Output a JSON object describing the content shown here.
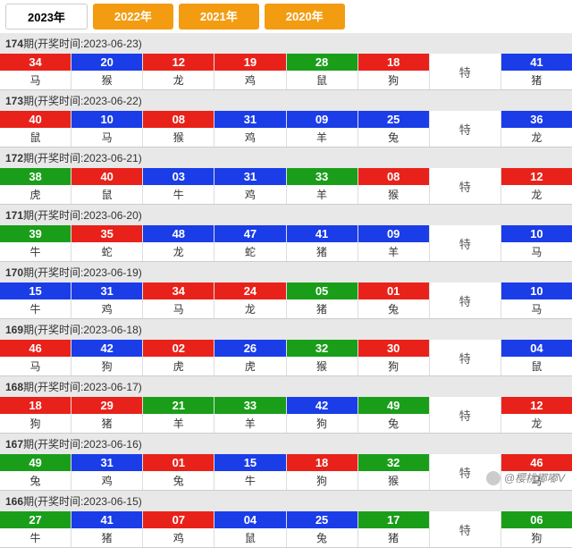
{
  "tabs": [
    {
      "label": "2023年",
      "active": true
    },
    {
      "label": "2022年",
      "active": false
    },
    {
      "label": "2021年",
      "active": false
    },
    {
      "label": "2020年",
      "active": false
    }
  ],
  "header_prefix": "期(开奖时间:",
  "header_suffix": ")",
  "special_label": "特",
  "colors": {
    "red": "#e8221a",
    "blue": "#1a3de8",
    "green": "#1a9e1a"
  },
  "periods": [
    {
      "issue": "174",
      "date": "2023-06-23",
      "balls": [
        {
          "n": "34",
          "z": "马",
          "c": "red"
        },
        {
          "n": "20",
          "z": "猴",
          "c": "blue"
        },
        {
          "n": "12",
          "z": "龙",
          "c": "red"
        },
        {
          "n": "19",
          "z": "鸡",
          "c": "red"
        },
        {
          "n": "28",
          "z": "鼠",
          "c": "green"
        },
        {
          "n": "18",
          "z": "狗",
          "c": "red"
        }
      ],
      "special": {
        "n": "41",
        "z": "猪",
        "c": "blue"
      }
    },
    {
      "issue": "173",
      "date": "2023-06-22",
      "balls": [
        {
          "n": "40",
          "z": "鼠",
          "c": "red"
        },
        {
          "n": "10",
          "z": "马",
          "c": "blue"
        },
        {
          "n": "08",
          "z": "猴",
          "c": "red"
        },
        {
          "n": "31",
          "z": "鸡",
          "c": "blue"
        },
        {
          "n": "09",
          "z": "羊",
          "c": "blue"
        },
        {
          "n": "25",
          "z": "兔",
          "c": "blue"
        }
      ],
      "special": {
        "n": "36",
        "z": "龙",
        "c": "blue"
      }
    },
    {
      "issue": "172",
      "date": "2023-06-21",
      "balls": [
        {
          "n": "38",
          "z": "虎",
          "c": "green"
        },
        {
          "n": "40",
          "z": "鼠",
          "c": "red"
        },
        {
          "n": "03",
          "z": "牛",
          "c": "blue"
        },
        {
          "n": "31",
          "z": "鸡",
          "c": "blue"
        },
        {
          "n": "33",
          "z": "羊",
          "c": "green"
        },
        {
          "n": "08",
          "z": "猴",
          "c": "red"
        }
      ],
      "special": {
        "n": "12",
        "z": "龙",
        "c": "red"
      }
    },
    {
      "issue": "171",
      "date": "2023-06-20",
      "balls": [
        {
          "n": "39",
          "z": "牛",
          "c": "green"
        },
        {
          "n": "35",
          "z": "蛇",
          "c": "red"
        },
        {
          "n": "48",
          "z": "龙",
          "c": "blue"
        },
        {
          "n": "47",
          "z": "蛇",
          "c": "blue"
        },
        {
          "n": "41",
          "z": "猪",
          "c": "blue"
        },
        {
          "n": "09",
          "z": "羊",
          "c": "blue"
        }
      ],
      "special": {
        "n": "10",
        "z": "马",
        "c": "blue"
      }
    },
    {
      "issue": "170",
      "date": "2023-06-19",
      "balls": [
        {
          "n": "15",
          "z": "牛",
          "c": "blue"
        },
        {
          "n": "31",
          "z": "鸡",
          "c": "blue"
        },
        {
          "n": "34",
          "z": "马",
          "c": "red"
        },
        {
          "n": "24",
          "z": "龙",
          "c": "red"
        },
        {
          "n": "05",
          "z": "猪",
          "c": "green"
        },
        {
          "n": "01",
          "z": "兔",
          "c": "red"
        }
      ],
      "special": {
        "n": "10",
        "z": "马",
        "c": "blue"
      }
    },
    {
      "issue": "169",
      "date": "2023-06-18",
      "balls": [
        {
          "n": "46",
          "z": "马",
          "c": "red"
        },
        {
          "n": "42",
          "z": "狗",
          "c": "blue"
        },
        {
          "n": "02",
          "z": "虎",
          "c": "red"
        },
        {
          "n": "26",
          "z": "虎",
          "c": "blue"
        },
        {
          "n": "32",
          "z": "猴",
          "c": "green"
        },
        {
          "n": "30",
          "z": "狗",
          "c": "red"
        }
      ],
      "special": {
        "n": "04",
        "z": "鼠",
        "c": "blue"
      }
    },
    {
      "issue": "168",
      "date": "2023-06-17",
      "balls": [
        {
          "n": "18",
          "z": "狗",
          "c": "red"
        },
        {
          "n": "29",
          "z": "猪",
          "c": "red"
        },
        {
          "n": "21",
          "z": "羊",
          "c": "green"
        },
        {
          "n": "33",
          "z": "羊",
          "c": "green"
        },
        {
          "n": "42",
          "z": "狗",
          "c": "blue"
        },
        {
          "n": "49",
          "z": "兔",
          "c": "green"
        }
      ],
      "special": {
        "n": "12",
        "z": "龙",
        "c": "red"
      }
    },
    {
      "issue": "167",
      "date": "2023-06-16",
      "balls": [
        {
          "n": "49",
          "z": "兔",
          "c": "green"
        },
        {
          "n": "31",
          "z": "鸡",
          "c": "blue"
        },
        {
          "n": "01",
          "z": "兔",
          "c": "red"
        },
        {
          "n": "15",
          "z": "牛",
          "c": "blue"
        },
        {
          "n": "18",
          "z": "狗",
          "c": "red"
        },
        {
          "n": "32",
          "z": "猴",
          "c": "green"
        }
      ],
      "special": {
        "n": "46",
        "z": "马",
        "c": "red"
      }
    },
    {
      "issue": "166",
      "date": "2023-06-15",
      "balls": [
        {
          "n": "27",
          "z": "牛",
          "c": "green"
        },
        {
          "n": "41",
          "z": "猪",
          "c": "blue"
        },
        {
          "n": "07",
          "z": "鸡",
          "c": "red"
        },
        {
          "n": "04",
          "z": "鼠",
          "c": "blue"
        },
        {
          "n": "25",
          "z": "兔",
          "c": "blue"
        },
        {
          "n": "17",
          "z": "猪",
          "c": "green"
        }
      ],
      "special": {
        "n": "06",
        "z": "狗",
        "c": "green"
      }
    }
  ],
  "watermark": "@樱桃嘟嘟V"
}
